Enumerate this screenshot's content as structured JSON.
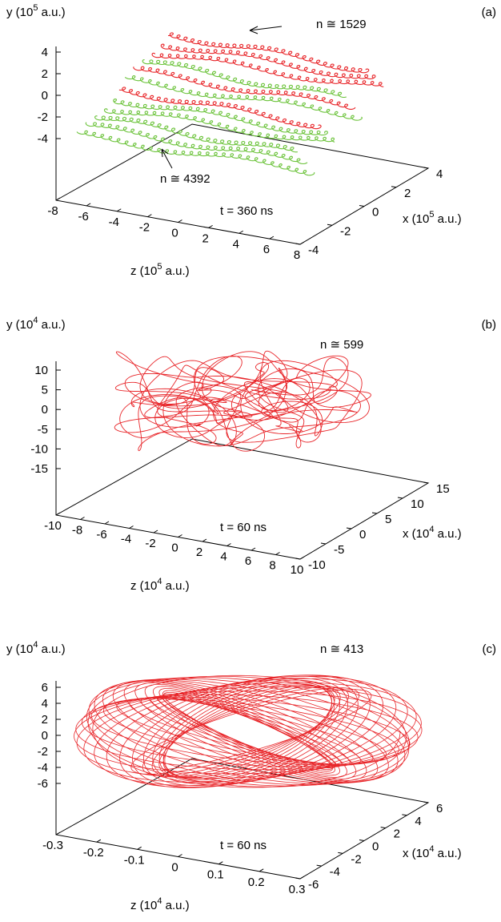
{
  "panels": [
    {
      "label": "(a)",
      "y_axis_label": [
        "y (10",
        "5",
        " a.u.)"
      ],
      "y_ticks": [
        "4",
        "2",
        "0",
        "-2",
        "-4"
      ],
      "z_axis_label": [
        "z (10",
        "5",
        " a.u.)"
      ],
      "z_ticks": [
        "-8",
        "-6",
        "-4",
        "-2",
        "0",
        "2",
        "4",
        "6",
        "8"
      ],
      "x_axis_label": [
        "x (10",
        "5",
        " a.u.)"
      ],
      "x_ticks": [
        "-4",
        "-2",
        "0",
        "2",
        "4"
      ],
      "annotations": [
        "n ≅ 1529",
        "n ≅ 4392",
        "t = 360 ns"
      ]
    },
    {
      "label": "(b)",
      "y_axis_label": [
        "y (10",
        "4",
        " a.u.)"
      ],
      "y_ticks": [
        "10",
        "5",
        "0",
        "-5",
        "-10",
        "-15"
      ],
      "z_axis_label": [
        "z (10",
        "4",
        " a.u.)"
      ],
      "z_ticks": [
        "-10",
        "-8",
        "-6",
        "-4",
        "-2",
        "0",
        "2",
        "4",
        "6",
        "8",
        "10"
      ],
      "x_axis_label": [
        "x (10",
        "4",
        " a.u.)"
      ],
      "x_ticks": [
        "-10",
        "-5",
        "0",
        "5",
        "10",
        "15"
      ],
      "annotations": [
        "n ≅ 599",
        "t = 60 ns"
      ]
    },
    {
      "label": "(c)",
      "y_axis_label": [
        "y (10",
        "4",
        " a.u.)"
      ],
      "y_ticks": [
        "6",
        "4",
        "2",
        "0",
        "-2",
        "-4",
        "-6"
      ],
      "z_axis_label": [
        "z (10",
        "4",
        " a.u.)"
      ],
      "z_ticks": [
        "-0.3",
        "-0.2",
        "-0.1",
        "0",
        "0.1",
        "0.2",
        "0.3"
      ],
      "x_axis_label": [
        "x (10",
        "4",
        " a.u.)"
      ],
      "x_ticks": [
        "-6",
        "-4",
        "-2",
        "0",
        "2",
        "4",
        "6"
      ],
      "annotations": [
        "n ≅ 413",
        "t = 60 ns"
      ]
    }
  ]
}
